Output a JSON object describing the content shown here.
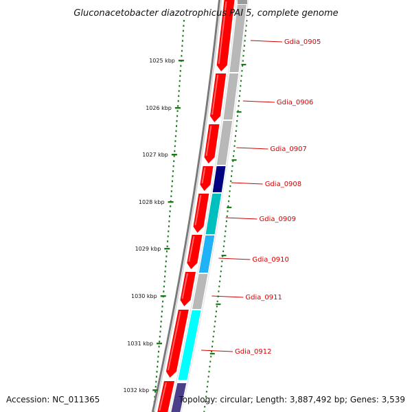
{
  "title": "Gluconacetobacter diazotrophicus PAI 5, complete genome",
  "footer": {
    "accession": "Accession: NC_011365",
    "topology": "Topology: circular; Length: 3,887,492 bp; Genes: 3,539"
  },
  "colors": {
    "gene_red": "#ff0000",
    "backbone": "#7a7a7a",
    "tick": "#1a7a1a",
    "label": "#d40000",
    "grey_gene": "#b8b8b8",
    "navy_gene": "#000080",
    "teal_gene": "#00bfbf",
    "sky_gene": "#1fb2f7",
    "cyan_gene": "#00ffff",
    "purple_gene": "#4b3f8a"
  },
  "ticks": [
    {
      "label": "1025 kbp"
    },
    {
      "label": "1026 kbp"
    },
    {
      "label": "1027 kbp"
    },
    {
      "label": "1028 kbp"
    },
    {
      "label": "1029 kbp"
    },
    {
      "label": "1030 kbp"
    },
    {
      "label": "1031 kbp"
    },
    {
      "label": "1032 kbp"
    }
  ],
  "genes": [
    {
      "name": "Gdia_0905",
      "color": "grey"
    },
    {
      "name": "Gdia_0906",
      "color": "grey"
    },
    {
      "name": "Gdia_0907",
      "color": "grey"
    },
    {
      "name": "Gdia_0908",
      "color": "navy"
    },
    {
      "name": "Gdia_0909",
      "color": "teal"
    },
    {
      "name": "Gdia_0910",
      "color": "sky"
    },
    {
      "name": "Gdia_0911",
      "color": "grey"
    },
    {
      "name": "Gdia_0912",
      "color": "cyan"
    }
  ]
}
